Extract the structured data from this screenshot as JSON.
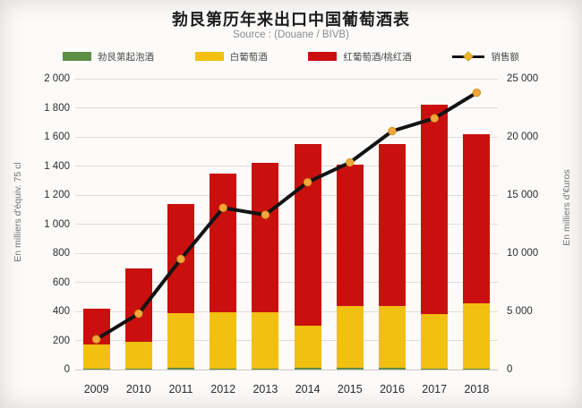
{
  "page": {
    "title": "勃艮第历年来出口中国葡萄酒表",
    "subtitle": "Source : (Douane / BIVB)"
  },
  "chart_data": {
    "type": "bar",
    "subtype": "stacked_bars_with_line_overlay",
    "title": "勃艮第历年来出口中国葡萄酒表",
    "subtitle": "Source : (Douane / BIVB)",
    "categories": [
      "2009",
      "2010",
      "2011",
      "2012",
      "2013",
      "2014",
      "2015",
      "2016",
      "2017",
      "2018"
    ],
    "series": [
      {
        "name": "勃艮第起泡酒",
        "type": "bar",
        "stacked": true,
        "color": "#5e8e46",
        "values": [
          4,
          5,
          15,
          6,
          8,
          10,
          10,
          12,
          6,
          8
        ]
      },
      {
        "name": "白葡萄酒",
        "type": "bar",
        "stacked": true,
        "color": "#f2c011",
        "values": [
          170,
          185,
          375,
          390,
          385,
          290,
          430,
          425,
          375,
          450
        ]
      },
      {
        "name": "红葡萄酒/桃红酒",
        "type": "bar",
        "stacked": true,
        "color": "#c9100e",
        "values": [
          246,
          505,
          750,
          954,
          1027,
          1250,
          970,
          1113,
          1439,
          1162
        ]
      },
      {
        "name": "销售额",
        "type": "line",
        "axis": "right",
        "color": "#141414",
        "marker_color": "#f2a63c",
        "values": [
          2600,
          4800,
          9500,
          13900,
          13300,
          16100,
          17800,
          20500,
          21600,
          23800
        ]
      }
    ],
    "stacked_totals": [
      420,
      695,
      1140,
      1350,
      1420,
      1550,
      1410,
      1550,
      1820,
      1620
    ],
    "left_axis": {
      "label": "En milliers d'équiv. 75 cl",
      "min": 0,
      "max": 2000,
      "step": 200,
      "tick_labels": [
        "0",
        "200",
        "400",
        "600",
        "800",
        "1 000",
        "1 200",
        "1 400",
        "1 600",
        "1 800",
        "2 000"
      ]
    },
    "right_axis": {
      "label": "En milliers d'€uros",
      "min": 0,
      "max": 25000,
      "step": 5000,
      "tick_labels": [
        "0",
        "5 000",
        "10 000",
        "15 000",
        "20 000",
        "25 000"
      ]
    },
    "grid": true,
    "legend_position": "top"
  }
}
